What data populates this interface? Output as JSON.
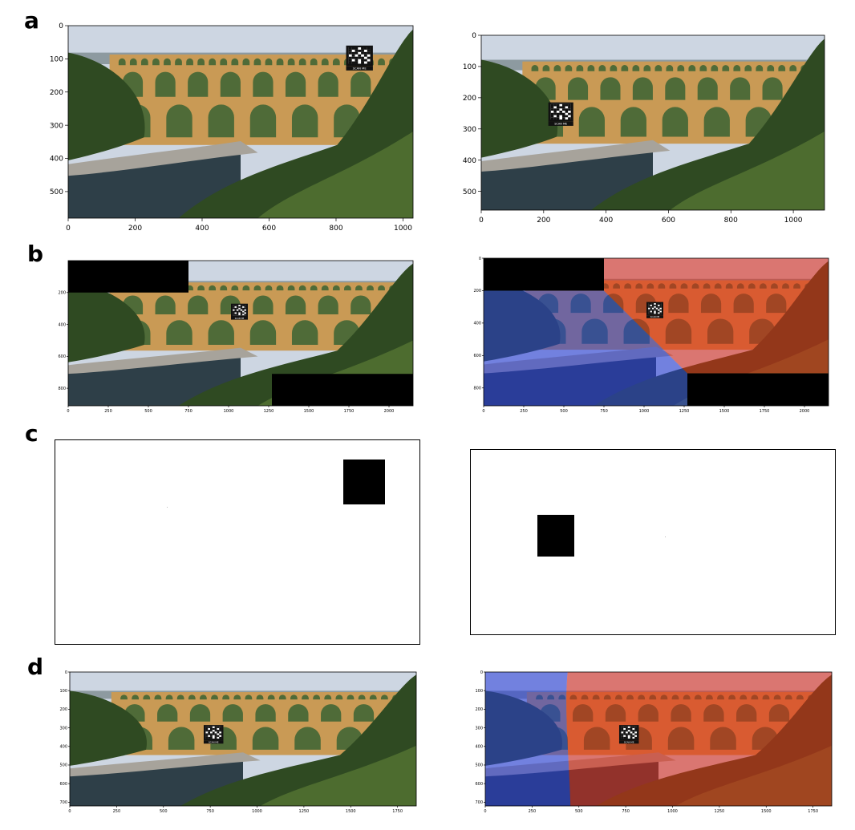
{
  "figure": {
    "panel_labels": [
      "a",
      "b",
      "c",
      "d"
    ],
    "qr_caption": "SCAN ME"
  },
  "colors": {
    "sky": "#cdd6e2",
    "stone": "#c99a55",
    "stone_dark": "#8f6530",
    "arch_void": "#4f6b38",
    "foliage": "#2f4a22",
    "foliage_light": "#5a7a34",
    "water": "#2e3f48",
    "rock": "#a7a39b",
    "overlay_blue": "rgba(40,60,220,0.55)",
    "overlay_red": "rgba(230,40,20,0.55)"
  },
  "panels": {
    "a_left": {
      "xticks": [
        "0",
        "200",
        "400",
        "600",
        "800",
        "1000"
      ],
      "yticks": [
        "0",
        "100",
        "200",
        "300",
        "400",
        "500"
      ],
      "xmax": 1030,
      "ymax": 580,
      "qr": [
        830,
        60,
        80,
        75
      ]
    },
    "a_right": {
      "xticks": [
        "0",
        "200",
        "400",
        "600",
        "800",
        "1000"
      ],
      "yticks": [
        "0",
        "100",
        "200",
        "300",
        "400",
        "500"
      ],
      "xmax": 1100,
      "ymax": 560,
      "qr": [
        215,
        215,
        80,
        75
      ]
    },
    "b_left": {
      "xticks": [
        "0",
        "250",
        "500",
        "750",
        "1000",
        "1250",
        "1500",
        "1750",
        "2000"
      ],
      "yticks": [
        "200",
        "400",
        "600",
        "800"
      ],
      "xmax": 2150,
      "ymax": 910,
      "qr": [
        1015,
        270,
        105,
        100
      ]
    },
    "b_right": {
      "xticks": [
        "0",
        "250",
        "500",
        "750",
        "1000",
        "1250",
        "1500",
        "1750",
        "2000"
      ],
      "yticks": [
        "0",
        "200",
        "400",
        "600",
        "800"
      ],
      "xmax": 2150,
      "ymax": 910,
      "qr": [
        1015,
        270,
        105,
        100
      ]
    },
    "d_left": {
      "xticks": [
        "0",
        "250",
        "500",
        "750",
        "1000",
        "1250",
        "1500",
        "1750"
      ],
      "yticks": [
        "0",
        "100",
        "200",
        "300",
        "400",
        "500",
        "600",
        "700"
      ],
      "xmax": 1850,
      "ymax": 720,
      "qr": [
        715,
        285,
        105,
        100
      ]
    },
    "d_right": {
      "xticks": [
        "0",
        "250",
        "500",
        "750",
        "1000",
        "1250",
        "1500",
        "1750"
      ],
      "yticks": [
        "0",
        "100",
        "200",
        "300",
        "400",
        "500",
        "600",
        "700"
      ],
      "xmax": 1850,
      "ymax": 720,
      "qr": [
        715,
        285,
        105,
        100
      ]
    }
  }
}
